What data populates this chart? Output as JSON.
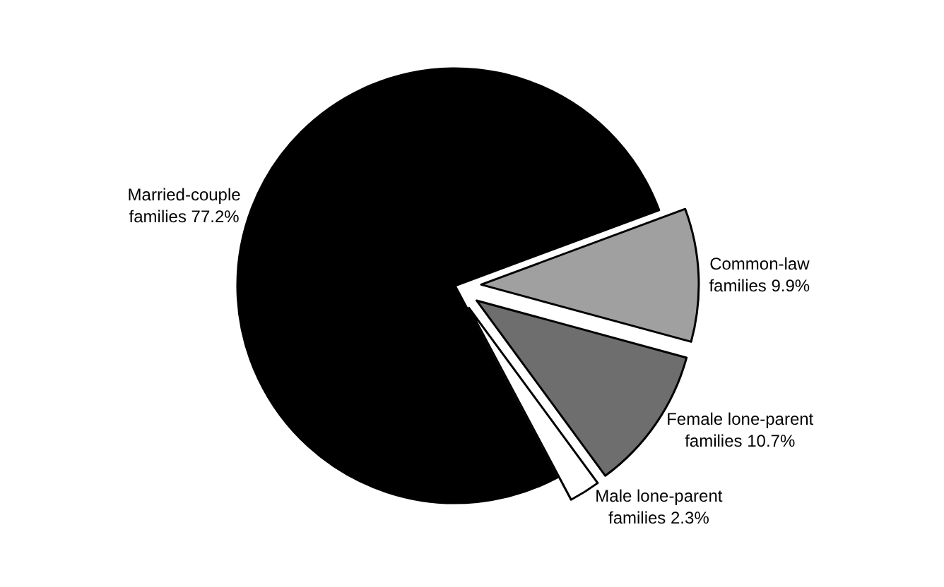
{
  "chart_data": {
    "type": "pie",
    "categories": [
      "Married-couple families",
      "Common-law families",
      "Female lone-parent families",
      "Male lone-parent families"
    ],
    "values": [
      77.2,
      9.9,
      10.7,
      2.3
    ],
    "value_labels": [
      "77.2%",
      "9.9%",
      "10.7%",
      "2.3%"
    ],
    "colors": [
      "#000000",
      "#a0a0a0",
      "#6e6e6e",
      "#ffffff"
    ],
    "legend": false
  }
}
